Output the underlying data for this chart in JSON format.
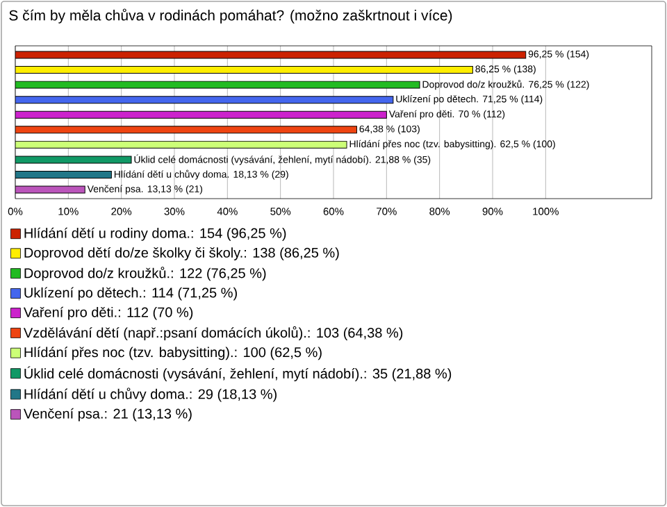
{
  "chart_data": {
    "type": "bar",
    "orientation": "horizontal",
    "title": "S čím by měla chůva v rodinách pomáhat? (možno zaškrtnout i více)",
    "categories": [
      null,
      null,
      null,
      null,
      null,
      null,
      null,
      null,
      null,
      null
    ],
    "xlim": [
      0,
      120
    ],
    "xticks": [
      {
        "value": 0,
        "label": "0%"
      },
      {
        "value": 10,
        "label": "10%"
      },
      {
        "value": 20,
        "label": "20%"
      },
      {
        "value": 30,
        "label": "30%"
      },
      {
        "value": 40,
        "label": "40%"
      },
      {
        "value": 50,
        "label": "50%"
      },
      {
        "value": 60,
        "label": "60%"
      },
      {
        "value": 70,
        "label": "70%"
      },
      {
        "value": 80,
        "label": "80%"
      },
      {
        "value": 90,
        "label": "90%"
      },
      {
        "value": 100,
        "label": "100%"
      }
    ],
    "grid": "x",
    "legend": "bottom",
    "series": [
      {
        "name": "Hlídání dětí u rodiny doma.: 154 (96,25 %)",
        "color": "#cc2200",
        "values": [
          96.25,
          null,
          null,
          null,
          null,
          null,
          null,
          null,
          null,
          null
        ],
        "value_labels": [
          "96,25 % (154)",
          null,
          null,
          null,
          null,
          null,
          null,
          null,
          null,
          null
        ]
      },
      {
        "name": "Doprovod dětí do/ze školky či školy.: 138 (86,25 %)",
        "color": "#ffee00",
        "values": [
          null,
          86.25,
          null,
          null,
          null,
          null,
          null,
          null,
          null,
          null
        ],
        "value_labels": [
          null,
          "86,25 % (138)",
          null,
          null,
          null,
          null,
          null,
          null,
          null,
          null
        ]
      },
      {
        "name": "Doprovod do/z kroužků.: 122 (76,25 %)",
        "color": "#22bb22",
        "values": [
          null,
          null,
          76.25,
          null,
          null,
          null,
          null,
          null,
          null,
          null
        ],
        "value_labels": [
          null,
          null,
          "Doprovod do/z kroužků. 76,25 % (122)",
          null,
          null,
          null,
          null,
          null,
          null,
          null
        ]
      },
      {
        "name": "Uklízení po dětech.: 114 (71,25 %)",
        "color": "#4466ee",
        "values": [
          null,
          null,
          null,
          71.25,
          null,
          null,
          null,
          null,
          null,
          null
        ],
        "value_labels": [
          null,
          null,
          null,
          "Uklízení po dětech. 71,25 % (114)",
          null,
          null,
          null,
          null,
          null,
          null
        ]
      },
      {
        "name": "Vaření pro děti.: 112 (70 %)",
        "color": "#cc22cc",
        "values": [
          null,
          null,
          null,
          null,
          70,
          null,
          null,
          null,
          null,
          null
        ],
        "value_labels": [
          null,
          null,
          null,
          null,
          "Vaření pro děti. 70 % (112)",
          null,
          null,
          null,
          null,
          null
        ]
      },
      {
        "name": "Vzdělávání dětí (např.:psaní domácích úkolů).: 103 (64,38 %)",
        "color": "#ee4411",
        "values": [
          null,
          null,
          null,
          null,
          null,
          64.38,
          null,
          null,
          null,
          null
        ],
        "value_labels": [
          null,
          null,
          null,
          null,
          null,
          "64,38 % (103)",
          null,
          null,
          null,
          null
        ]
      },
      {
        "name": "Hlídání přes noc (tzv. babysitting).: 100 (62,5 %)",
        "color": "#ccff77",
        "values": [
          null,
          null,
          null,
          null,
          null,
          null,
          62.5,
          null,
          null,
          null
        ],
        "value_labels": [
          null,
          null,
          null,
          null,
          null,
          null,
          "Hlídání přes noc (tzv. babysitting). 62,5 % (100)",
          null,
          null,
          null
        ]
      },
      {
        "name": "Úklid celé domácnosti (vysávání, žehlení, mytí nádobí).: 35 (21,88 %)",
        "color": "#119966",
        "values": [
          null,
          null,
          null,
          null,
          null,
          null,
          null,
          21.88,
          null,
          null
        ],
        "value_labels": [
          null,
          null,
          null,
          null,
          null,
          null,
          null,
          "Úklid celé domácnosti (vysávání, žehlení, mytí nádobí). 21,88 % (35)",
          null,
          null
        ]
      },
      {
        "name": "Hlídání dětí u chůvy doma.: 29 (18,13 %)",
        "color": "#227788",
        "values": [
          null,
          null,
          null,
          null,
          null,
          null,
          null,
          null,
          18.13,
          null
        ],
        "value_labels": [
          null,
          null,
          null,
          null,
          null,
          null,
          null,
          null,
          "Hlídání dětí u chůvy doma. 18,13 % (29)",
          null
        ]
      },
      {
        "name": "Venčení psa.: 21 (13,13 %)",
        "color": "#bb55bb",
        "values": [
          null,
          null,
          null,
          null,
          null,
          null,
          null,
          null,
          null,
          13.13
        ],
        "value_labels": [
          null,
          null,
          null,
          null,
          null,
          null,
          null,
          null,
          null,
          "Venčení psa. 13,13 % (21)"
        ]
      }
    ]
  }
}
